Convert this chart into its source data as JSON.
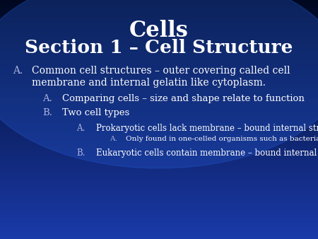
{
  "title_line1": "Cells",
  "title_line2": "Section 1 – Cell Structure",
  "title_color": "#ffffff",
  "bg_top": "#000820",
  "bg_bottom": "#1a3aaa",
  "bullet_A_label": "A.",
  "bullet_A_text1": "Common cell structures – outer covering called cell",
  "bullet_A_text2": "membrane and internal gelatin like cytoplasm.",
  "sub_A_label": "A.",
  "sub_A_text": "Comparing cells – size and shape relate to function",
  "sub_B_label": "B.",
  "sub_B_text": "Two cell types",
  "sub_sub_A_label": "A.",
  "sub_sub_A_text": "Prokaryotic cells lack membrane – bound internal structures",
  "sub_sub_sub_A_label": "A.",
  "sub_sub_sub_A_text": "Only found in one-celled organisms such as bacteria",
  "sub_sub_B_label": "B.",
  "sub_sub_B_text": "Eukaryotic cells contain membrane – bound internal structures.",
  "text_color": "#ffffff",
  "label_color": "#aab4dd",
  "figsize": [
    4.5,
    3.38
  ],
  "dpi": 100
}
